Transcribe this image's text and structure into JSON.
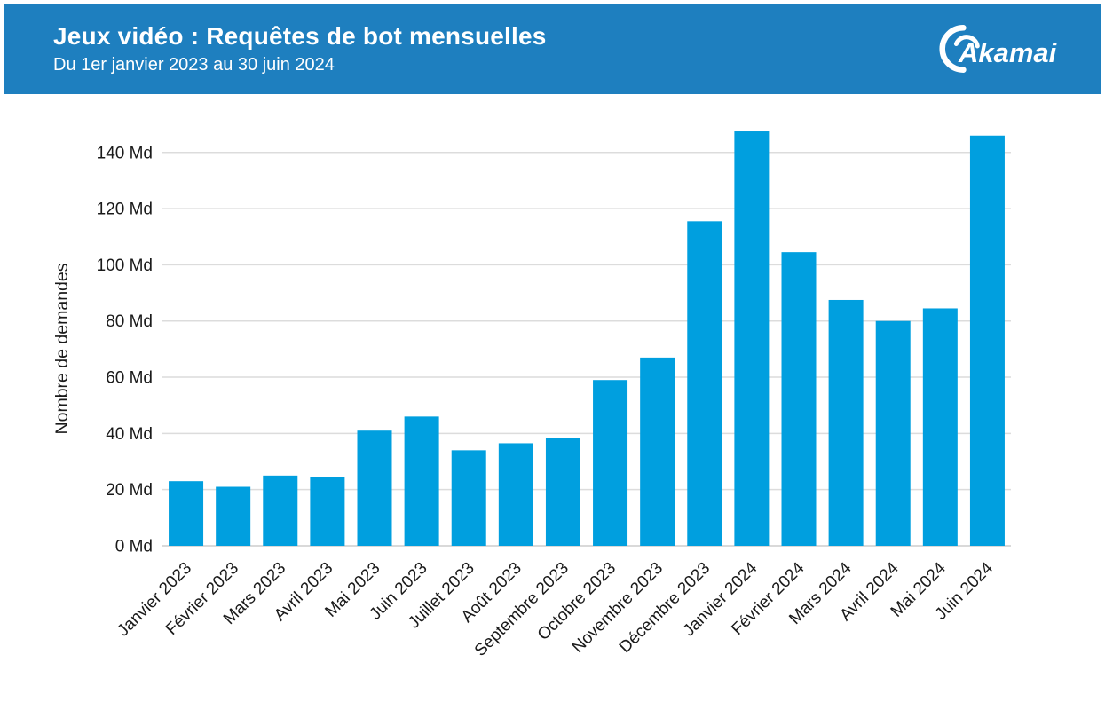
{
  "header": {
    "title": "Jeux vidéo : Requêtes de bot mensuelles",
    "subtitle": "Du 1er janvier 2023 au 30 juin 2024",
    "background_color": "#1E7FBF",
    "text_color": "#FFFFFF",
    "logo_text": "Akamai"
  },
  "chart_data": {
    "type": "bar",
    "title": "Jeux vidéo : Requêtes de bot mensuelles",
    "subtitle": "Du 1er janvier 2023 au 30 juin 2024",
    "categories": [
      "Janvier 2023",
      "Février 2023",
      "Mars 2023",
      "Avril 2023",
      "Mai 2023",
      "Juin 2023",
      "Juillet 2023",
      "Août 2023",
      "Septembre 2023",
      "Octobre 2023",
      "Novembre 2023",
      "Décembre 2023",
      "Janvier 2024",
      "Février 2024",
      "Mars 2024",
      "Avril 2024",
      "Mai 2024",
      "Juin 2024"
    ],
    "values": [
      23,
      21,
      25,
      24.5,
      41,
      46,
      34,
      36.5,
      38.5,
      59,
      67,
      115.5,
      147.5,
      104.5,
      87.5,
      80,
      84.5,
      146
    ],
    "unit": "Md",
    "xlabel": "",
    "ylabel": "Nombre de demandes",
    "y_ticks": [
      "0 Md",
      "20 Md",
      "40 Md",
      "60 Md",
      "80 Md",
      "100 Md",
      "120 Md",
      "140 Md"
    ],
    "y_tick_values": [
      0,
      20,
      40,
      60,
      80,
      100,
      120,
      140
    ],
    "ylim": [
      0,
      150
    ],
    "grid": true,
    "legend_position": "none",
    "bar_color": "#009FDF",
    "grid_color": "#DCDCDC",
    "axis_line_color": "#D9D9D9",
    "tick_text_color": "#1a1a1a"
  }
}
